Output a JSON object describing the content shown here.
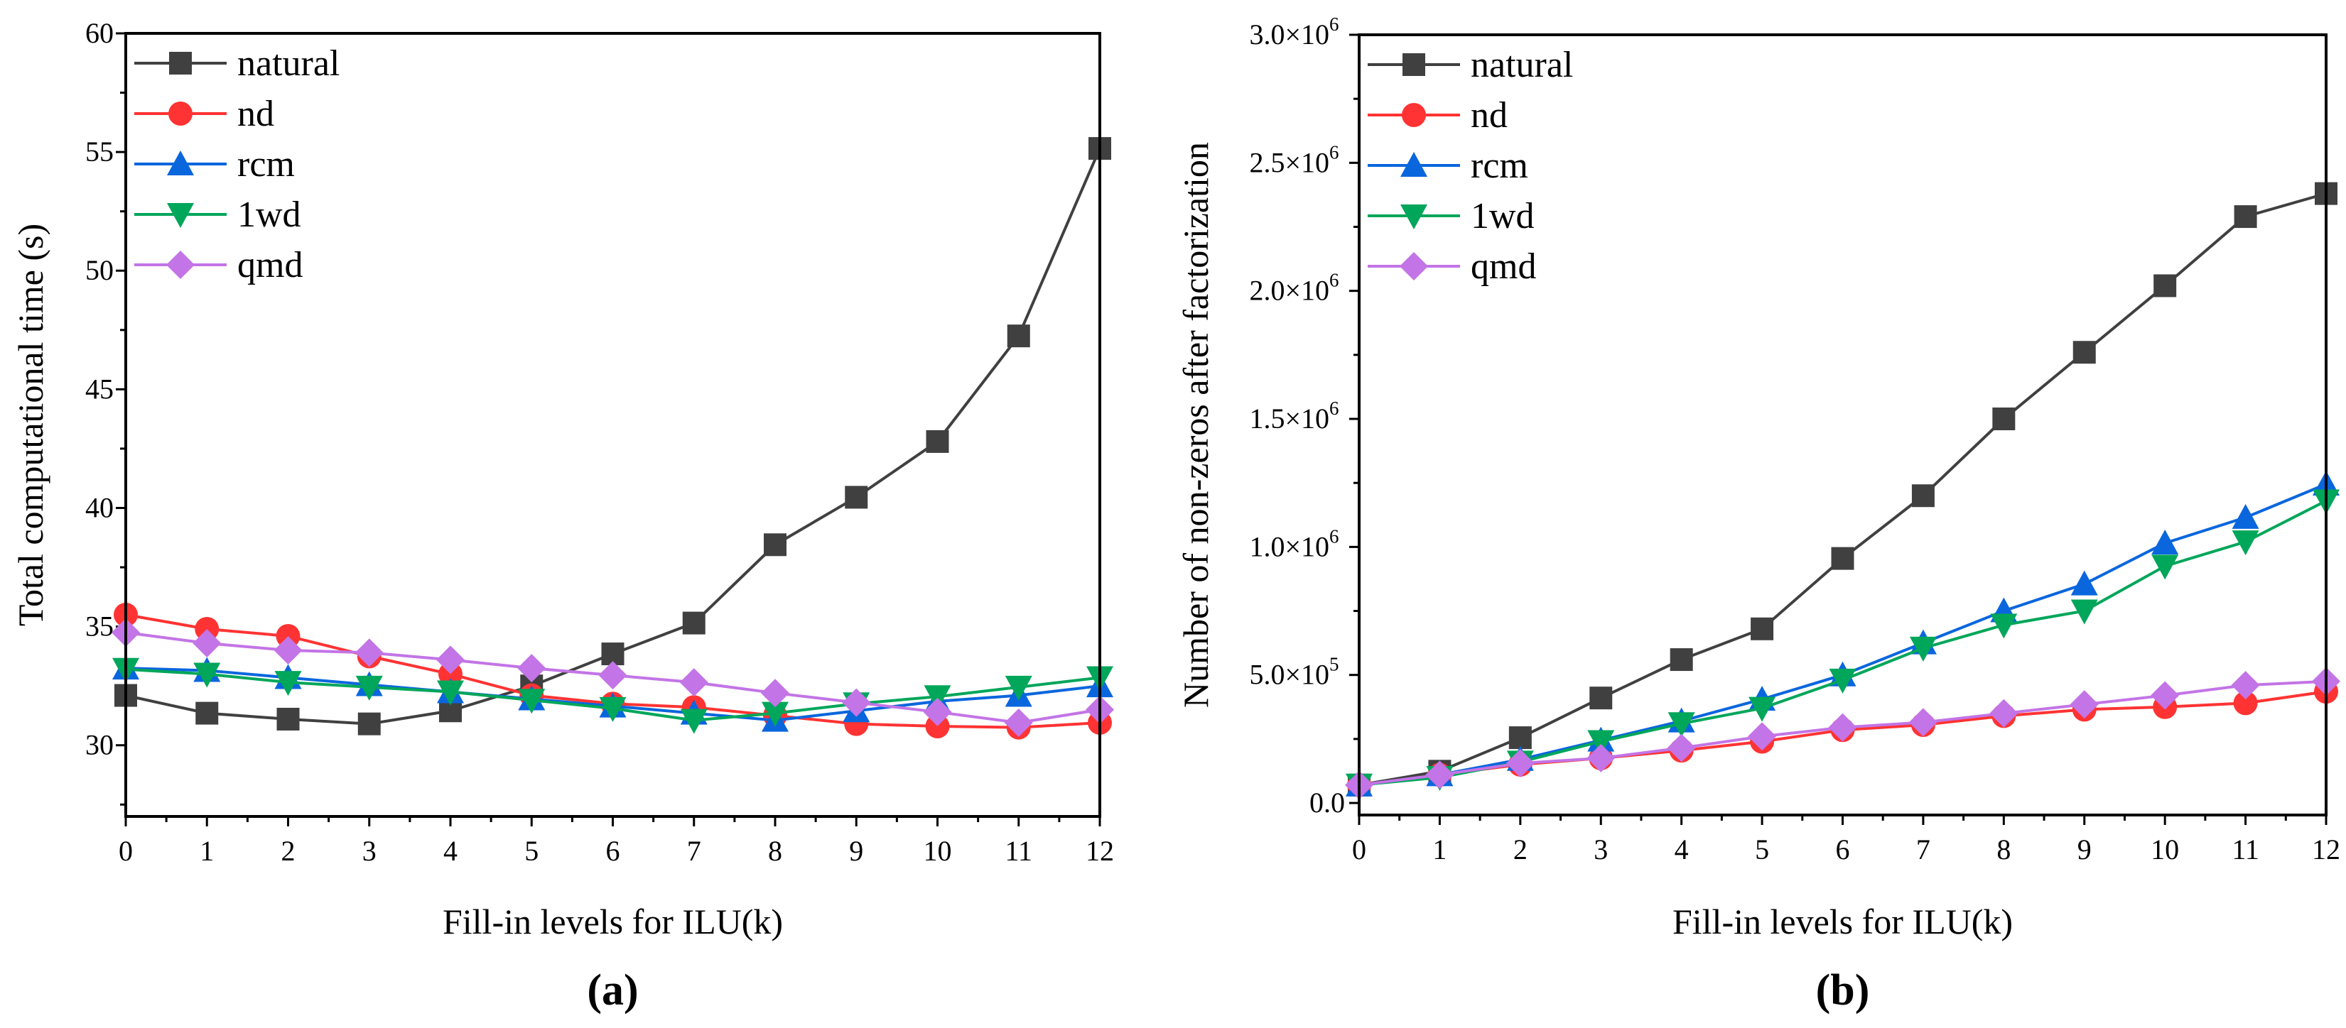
{
  "colors": {
    "natural": "#404040",
    "nd": "#ff3333",
    "rcm": "#0a66dd",
    "1wd": "#00a65a",
    "qmd": "#c374e6"
  },
  "chart_data": [
    {
      "type": "line",
      "panel_label": "(a)",
      "xlabel": "Fill-in levels for ILU(k)",
      "ylabel": "Total computational time (s)",
      "xlim": [
        0,
        12
      ],
      "ylim": [
        27,
        60
      ],
      "x": [
        0,
        1,
        2,
        3,
        4,
        5,
        6,
        7,
        8,
        9,
        10,
        11,
        12
      ],
      "xticks": [
        "0",
        "1",
        "2",
        "3",
        "4",
        "5",
        "6",
        "7",
        "8",
        "9",
        "10",
        "11",
        "12"
      ],
      "yticks": [
        {
          "value": 30,
          "label": "30"
        },
        {
          "value": 35,
          "label": "35"
        },
        {
          "value": 40,
          "label": "40"
        },
        {
          "value": 45,
          "label": "45"
        },
        {
          "value": 50,
          "label": "50"
        },
        {
          "value": 55,
          "label": "55"
        },
        {
          "value": 60,
          "label": "60"
        }
      ],
      "legend": "top-left",
      "series": [
        {
          "name": "natural",
          "marker": "square",
          "values": [
            32.1,
            31.35,
            31.1,
            30.9,
            31.45,
            32.5,
            33.85,
            35.15,
            38.45,
            40.45,
            42.8,
            47.25,
            55.15
          ]
        },
        {
          "name": "nd",
          "marker": "circle",
          "values": [
            35.5,
            34.9,
            34.6,
            33.75,
            33.0,
            32.1,
            31.75,
            31.6,
            31.25,
            30.9,
            30.8,
            30.75,
            30.95
          ]
        },
        {
          "name": "rcm",
          "marker": "triangle-up",
          "values": [
            33.25,
            33.15,
            32.85,
            32.55,
            32.25,
            31.95,
            31.65,
            31.35,
            31.05,
            31.45,
            31.85,
            32.1,
            32.5
          ]
        },
        {
          "name": "1wd",
          "marker": "triangle-down",
          "values": [
            33.2,
            33.0,
            32.65,
            32.45,
            32.25,
            31.9,
            31.55,
            31.05,
            31.35,
            31.75,
            32.05,
            32.45,
            32.85
          ]
        },
        {
          "name": "qmd",
          "marker": "diamond",
          "values": [
            34.75,
            34.3,
            34.0,
            33.9,
            33.6,
            33.25,
            32.95,
            32.65,
            32.2,
            31.8,
            31.4,
            30.95,
            31.5
          ]
        }
      ]
    },
    {
      "type": "line",
      "panel_label": "(b)",
      "xlabel": "Fill-in levels for ILU(k)",
      "ylabel": "Number of non-zeros after factorization",
      "xlim": [
        0,
        12
      ],
      "ylim": [
        -47000,
        3000000
      ],
      "x": [
        0,
        1,
        2,
        3,
        4,
        5,
        6,
        7,
        8,
        9,
        10,
        11,
        12
      ],
      "xticks": [
        "0",
        "1",
        "2",
        "3",
        "4",
        "5",
        "6",
        "7",
        "8",
        "9",
        "10",
        "11",
        "12"
      ],
      "yticks": [
        {
          "value": 0,
          "label": "0.0",
          "exp": ""
        },
        {
          "value": 500000,
          "label": "5.0×10",
          "exp": "5"
        },
        {
          "value": 1000000,
          "label": "1.0×10",
          "exp": "6"
        },
        {
          "value": 1500000,
          "label": "1.5×10",
          "exp": "6"
        },
        {
          "value": 2000000,
          "label": "2.0×10",
          "exp": "6"
        },
        {
          "value": 2500000,
          "label": "2.5×10",
          "exp": "6"
        },
        {
          "value": 3000000,
          "label": "3.0×10",
          "exp": "6"
        }
      ],
      "legend": "top-left",
      "series": [
        {
          "name": "natural",
          "marker": "square",
          "values": [
            70000,
            124000,
            255000,
            410000,
            560000,
            680000,
            955000,
            1200000,
            1500000,
            1760000,
            2020000,
            2290000,
            2380000
          ]
        },
        {
          "name": "nd",
          "marker": "circle",
          "values": [
            70000,
            110000,
            150000,
            175000,
            205000,
            240000,
            285000,
            305000,
            340000,
            365000,
            375000,
            390000,
            435000
          ]
        },
        {
          "name": "rcm",
          "marker": "triangle-up",
          "values": [
            70000,
            110000,
            170000,
            245000,
            320000,
            405000,
            500000,
            625000,
            750000,
            855000,
            1015000,
            1115000,
            1245000
          ]
        },
        {
          "name": "1wd",
          "marker": "triangle-down",
          "values": [
            70000,
            100000,
            160000,
            240000,
            310000,
            370000,
            480000,
            605000,
            695000,
            750000,
            925000,
            1020000,
            1180000
          ]
        },
        {
          "name": "qmd",
          "marker": "diamond",
          "values": [
            70000,
            110000,
            155000,
            175000,
            215000,
            260000,
            295000,
            315000,
            350000,
            385000,
            420000,
            460000,
            475000
          ]
        }
      ]
    }
  ]
}
